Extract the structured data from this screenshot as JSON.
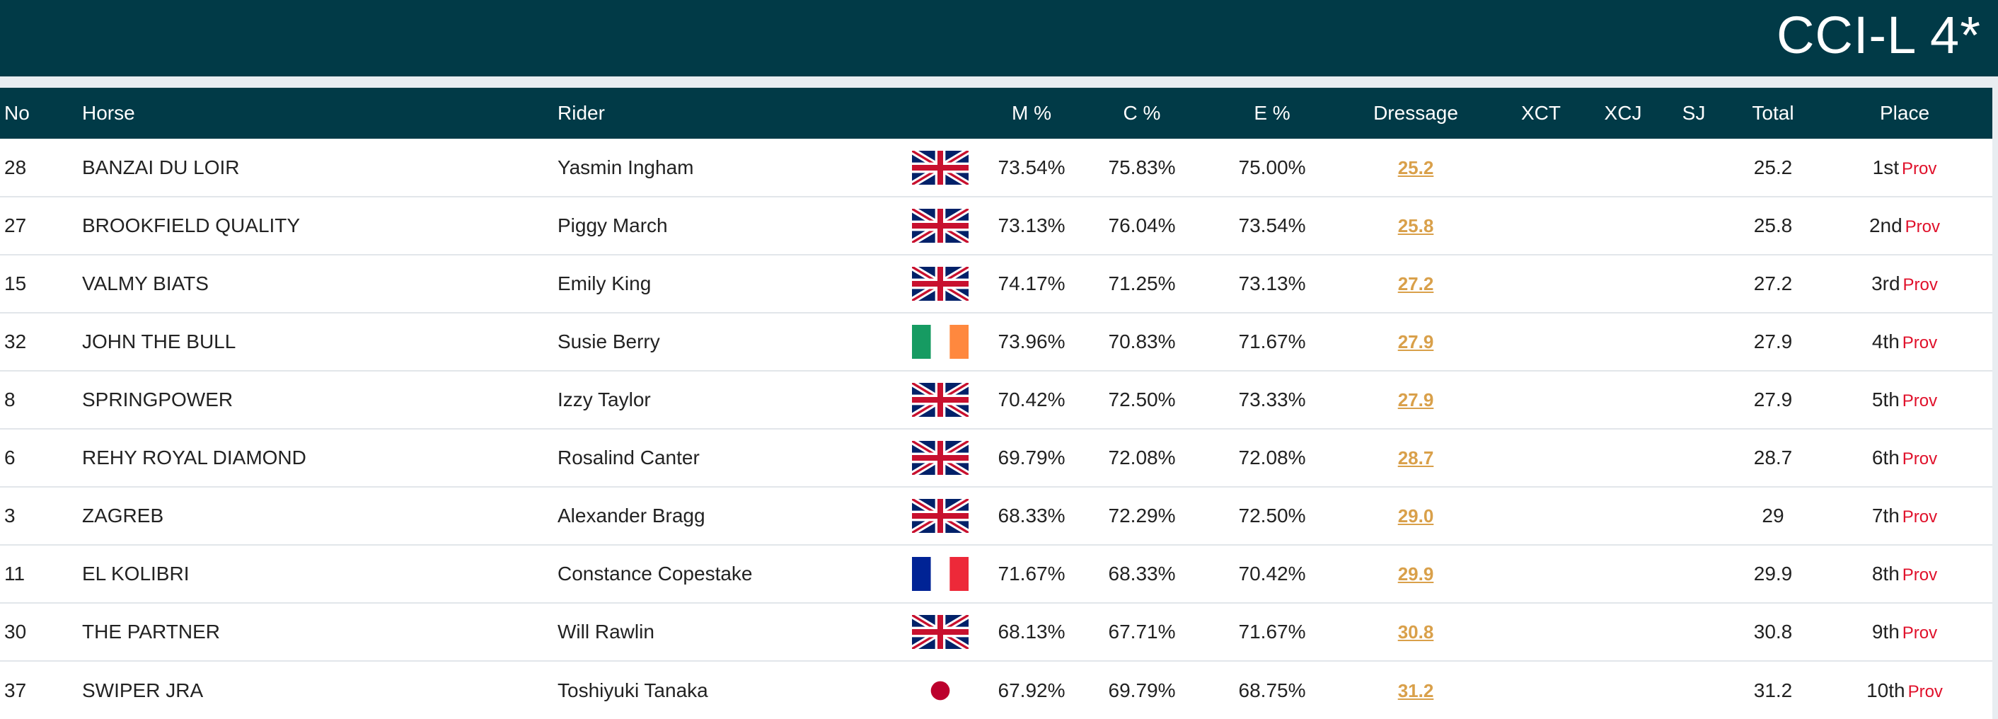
{
  "header": {
    "title": "CCI-L 4*"
  },
  "table": {
    "columns": [
      "No",
      "Horse",
      "Rider",
      "",
      "M %",
      "C %",
      "E %",
      "Dressage",
      "XCT",
      "XCJ",
      "SJ",
      "Total",
      "Place"
    ],
    "rows": [
      {
        "no": "28",
        "horse": "BANZAI DU LOIR",
        "rider": "Yasmin Ingham",
        "flag": "gb-flag",
        "m": "73.54%",
        "c": "75.83%",
        "e": "75.00%",
        "dressage": "25.2",
        "xct": "",
        "xcj": "",
        "sj": "",
        "total": "25.2",
        "place": "1st",
        "status": "Prov"
      },
      {
        "no": "27",
        "horse": "BROOKFIELD QUALITY",
        "rider": "Piggy March",
        "flag": "gb-flag",
        "m": "73.13%",
        "c": "76.04%",
        "e": "73.54%",
        "dressage": "25.8",
        "xct": "",
        "xcj": "",
        "sj": "",
        "total": "25.8",
        "place": "2nd",
        "status": "Prov"
      },
      {
        "no": "15",
        "horse": "VALMY BIATS",
        "rider": "Emily King",
        "flag": "gb-flag",
        "m": "74.17%",
        "c": "71.25%",
        "e": "73.13%",
        "dressage": "27.2",
        "xct": "",
        "xcj": "",
        "sj": "",
        "total": "27.2",
        "place": "3rd",
        "status": "Prov"
      },
      {
        "no": "32",
        "horse": "JOHN THE BULL",
        "rider": "Susie Berry",
        "flag": "ie-flag",
        "m": "73.96%",
        "c": "70.83%",
        "e": "71.67%",
        "dressage": "27.9",
        "xct": "",
        "xcj": "",
        "sj": "",
        "total": "27.9",
        "place": "4th",
        "status": "Prov"
      },
      {
        "no": "8",
        "horse": "SPRINGPOWER",
        "rider": "Izzy Taylor",
        "flag": "gb-flag",
        "m": "70.42%",
        "c": "72.50%",
        "e": "73.33%",
        "dressage": "27.9",
        "xct": "",
        "xcj": "",
        "sj": "",
        "total": "27.9",
        "place": "5th",
        "status": "Prov"
      },
      {
        "no": "6",
        "horse": "REHY ROYAL DIAMOND",
        "rider": "Rosalind Canter",
        "flag": "gb-flag",
        "m": "69.79%",
        "c": "72.08%",
        "e": "72.08%",
        "dressage": "28.7",
        "xct": "",
        "xcj": "",
        "sj": "",
        "total": "28.7",
        "place": "6th",
        "status": "Prov"
      },
      {
        "no": "3",
        "horse": "ZAGREB",
        "rider": "Alexander Bragg",
        "flag": "gb-flag",
        "m": "68.33%",
        "c": "72.29%",
        "e": "72.50%",
        "dressage": "29.0",
        "xct": "",
        "xcj": "",
        "sj": "",
        "total": "29",
        "place": "7th",
        "status": "Prov"
      },
      {
        "no": "11",
        "horse": "EL KOLIBRI",
        "rider": "Constance Copestake",
        "flag": "fr-flag",
        "m": "71.67%",
        "c": "68.33%",
        "e": "70.42%",
        "dressage": "29.9",
        "xct": "",
        "xcj": "",
        "sj": "",
        "total": "29.9",
        "place": "8th",
        "status": "Prov"
      },
      {
        "no": "30",
        "horse": "THE PARTNER",
        "rider": "Will Rawlin",
        "flag": "gb-flag",
        "m": "68.13%",
        "c": "67.71%",
        "e": "71.67%",
        "dressage": "30.8",
        "xct": "",
        "xcj": "",
        "sj": "",
        "total": "30.8",
        "place": "9th",
        "status": "Prov"
      },
      {
        "no": "37",
        "horse": "SWIPER JRA",
        "rider": "Toshiyuki Tanaka",
        "flag": "jp-flag",
        "m": "67.92%",
        "c": "69.79%",
        "e": "68.75%",
        "dressage": "31.2",
        "xct": "",
        "xcj": "",
        "sj": "",
        "total": "31.2",
        "place": "10th",
        "status": "Prov"
      }
    ]
  },
  "colors": {
    "header_bg": "#013a47",
    "dressage_link": "#d9a04a",
    "prov": "#e0102a"
  }
}
